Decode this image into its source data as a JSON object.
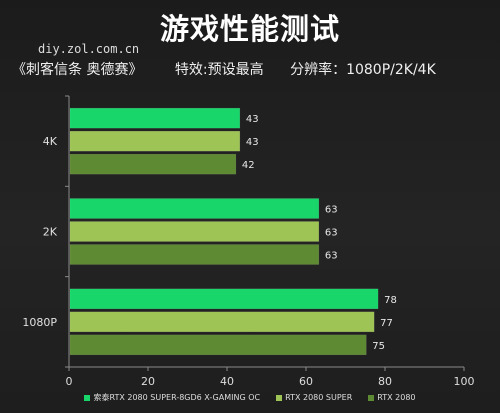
{
  "header": {
    "title": "游戏性能测试",
    "watermark": "diy.zol.com.cn",
    "subtitle_game": "《刺客信条 奥德赛》",
    "subtitle_effects": "特效:预设最高",
    "subtitle_resolution": "分辨率：1080P/2K/4K"
  },
  "chart_data": {
    "type": "bar",
    "orientation": "horizontal",
    "categories": [
      "4K",
      "2K",
      "1080P"
    ],
    "series": [
      {
        "name": "索泰RTX 2080 SUPER-8GD6 X-GAMING OC",
        "values": [
          43,
          63,
          78
        ],
        "color": "#18d66a"
      },
      {
        "name": "RTX 2080 SUPER",
        "values": [
          43,
          63,
          77
        ],
        "color": "#9dc455"
      },
      {
        "name": "RTX 2080",
        "values": [
          42,
          63,
          75
        ],
        "color": "#5e8a33"
      }
    ],
    "xlim": [
      0,
      100
    ],
    "xticks": [
      0,
      20,
      40,
      60,
      80,
      100
    ],
    "grid": false,
    "legend_position": "bottom",
    "data_labels": true
  }
}
